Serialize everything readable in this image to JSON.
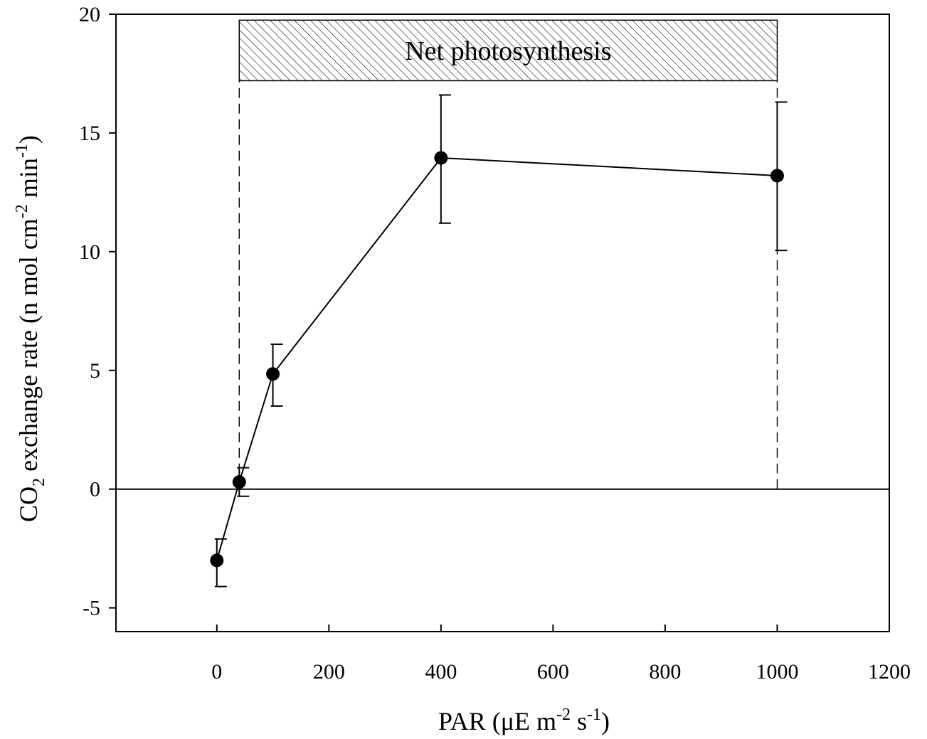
{
  "chart_data": {
    "type": "line",
    "x": [
      0,
      40,
      100,
      400,
      1000
    ],
    "series": [
      {
        "values": [
          -3.0,
          0.3,
          4.85,
          13.95,
          13.2
        ],
        "error_upper": [
          -2.1,
          0.9,
          6.1,
          16.6,
          16.3
        ],
        "error_lower": [
          -4.1,
          -0.3,
          3.5,
          11.2,
          10.05
        ],
        "marker": "filled-circle",
        "color": "#000000"
      }
    ],
    "xlim": [
      -180,
      1200
    ],
    "ylim": [
      -6,
      20
    ],
    "xticks": [
      0,
      200,
      400,
      600,
      800,
      1000,
      1200
    ],
    "yticks": [
      -5,
      0,
      5,
      10,
      15,
      20
    ],
    "xtick_labels": [
      "0",
      "200",
      "400",
      "600",
      "800",
      "1000",
      "1200"
    ],
    "ytick_labels": [
      "-5",
      "0",
      "5",
      "10",
      "15",
      "20"
    ],
    "zero_line": true,
    "grid": false,
    "xlabel": {
      "prefix": "PAR (μE m",
      "sup1": "-2",
      "middle": " s",
      "sup2": "-1",
      "suffix": ")"
    },
    "ylabel": {
      "prefix": "CO",
      "sub": "2",
      "middle": " exchange rate (n mol cm",
      "sup1": "-2",
      "middle2": " min",
      "sup2": "-1",
      "suffix": ")"
    },
    "annotation": {
      "text": "Net photosynthesis",
      "x_start": 40,
      "x_end": 1000,
      "y_bottom": 17.2,
      "y_top": 19.75,
      "fill": "hatched"
    },
    "reference_lines": [
      {
        "x": 40,
        "y_from": 0,
        "y_to": 17.2,
        "style": "dashed"
      },
      {
        "x": 1000,
        "y_from": 0,
        "y_to": 17.2,
        "style": "dashed"
      }
    ]
  }
}
